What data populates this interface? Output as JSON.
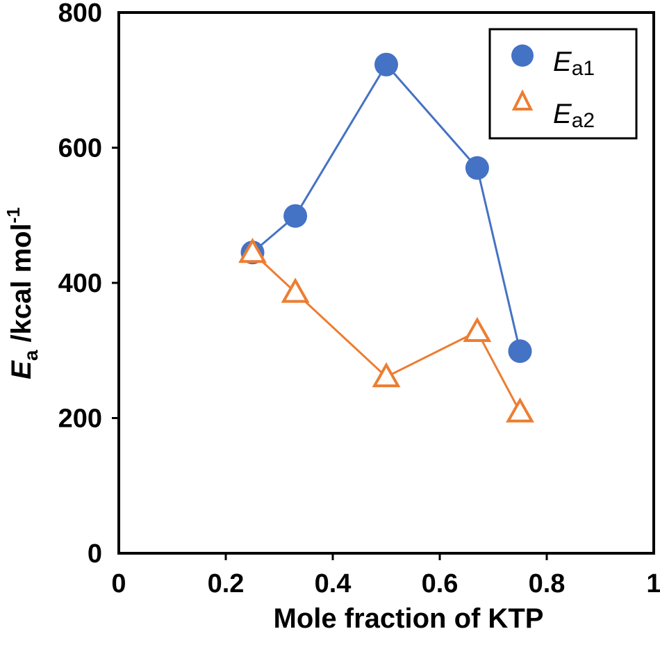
{
  "chart_data": {
    "type": "line",
    "xlabel": "Mole fraction of KTP",
    "ylabel": {
      "main": "E",
      "sub": "a",
      "rest": " /kcal mol",
      "sup": "-1"
    },
    "xlim": [
      0,
      1
    ],
    "ylim": [
      0,
      800
    ],
    "x_ticks": [
      0,
      0.2,
      0.4,
      0.6,
      0.8,
      1
    ],
    "x_tick_labels": [
      "0",
      "0.2",
      "0.4",
      "0.6",
      "0.8",
      "1"
    ],
    "y_ticks": [
      0,
      200,
      400,
      600,
      800
    ],
    "y_tick_labels": [
      "0",
      "200",
      "400",
      "600",
      "800"
    ],
    "grid": false,
    "legend_position": "top-right",
    "series": [
      {
        "name": "Ea1",
        "legend_main": "E",
        "legend_sub": "a1",
        "marker": "circle-filled",
        "color": "#4472C4",
        "x": [
          0.25,
          0.33,
          0.5,
          0.67,
          0.75
        ],
        "y": [
          445,
          499,
          723,
          570,
          299
        ]
      },
      {
        "name": "Ea2",
        "legend_main": "E",
        "legend_sub": "a2",
        "marker": "triangle-open",
        "color": "#ED7D31",
        "x": [
          0.25,
          0.33,
          0.5,
          0.67,
          0.75
        ],
        "y": [
          445,
          386,
          261,
          328,
          209
        ]
      }
    ]
  }
}
